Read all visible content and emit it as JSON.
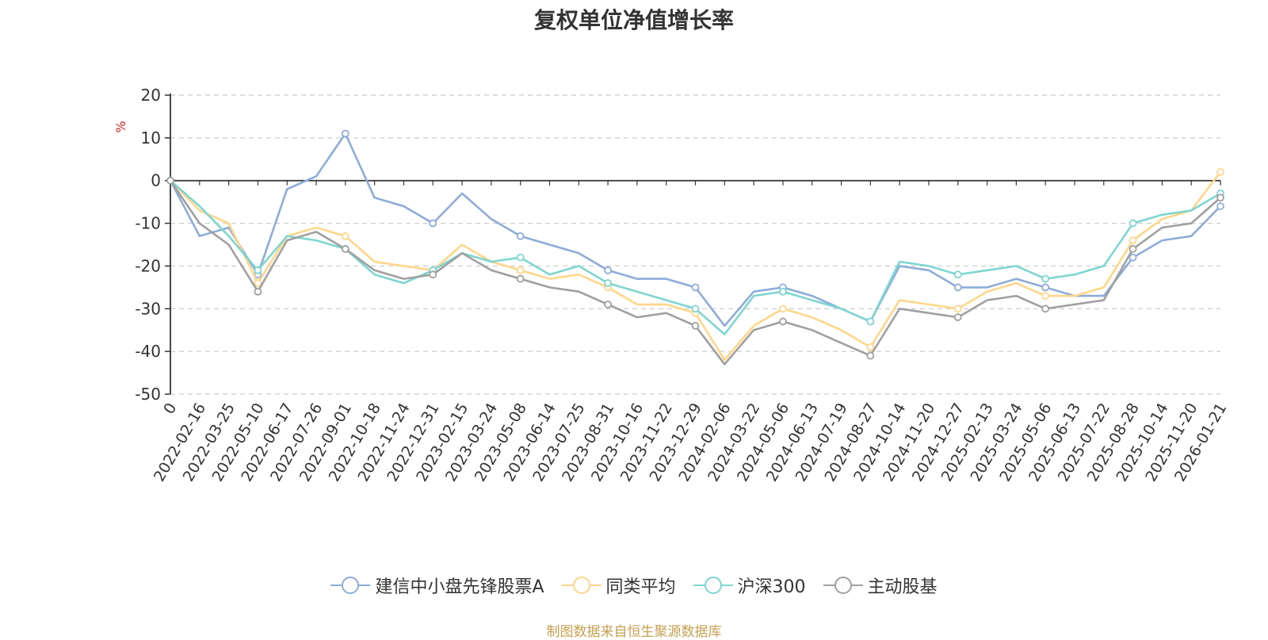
{
  "chart_data": {
    "type": "line",
    "title": "复权单位净值增长率",
    "ylabel": "%",
    "ylim": [
      -50,
      20
    ],
    "yticks": [
      20,
      10,
      0,
      -10,
      -20,
      -30,
      -40,
      -50
    ],
    "grid": true,
    "legend_position": "bottom",
    "categories": [
      "0",
      "2022-02-16",
      "2022-03-25",
      "2022-05-10",
      "2022-06-17",
      "2022-07-26",
      "2022-09-01",
      "2022-10-18",
      "2022-11-24",
      "2022-12-31",
      "2023-02-15",
      "2023-03-24",
      "2023-05-08",
      "2023-06-14",
      "2023-07-25",
      "2023-08-31",
      "2023-10-16",
      "2023-11-22",
      "2023-12-29",
      "2024-02-06",
      "2024-03-22",
      "2024-05-06",
      "2024-06-13",
      "2024-07-19",
      "2024-08-27",
      "2024-10-14",
      "2024-11-20",
      "2024-12-27",
      "2025-02-13",
      "2025-03-24",
      "2025-05-06",
      "2025-06-13",
      "2025-07-22",
      "2025-08-28",
      "2025-10-14",
      "2025-11-20",
      "2026-01-21"
    ],
    "series": [
      {
        "name": "建信中小盘先锋股票A",
        "color": "#8eacd9",
        "values": [
          0,
          -13,
          -11,
          -22,
          -2,
          1,
          11,
          -4,
          -6,
          -10,
          -3,
          -9,
          -13,
          -15,
          -17,
          -21,
          -23,
          -23,
          -25,
          -34,
          -26,
          -25,
          -27,
          -30,
          -33,
          -20,
          -21,
          -25,
          -25,
          -23,
          -25,
          -27,
          -27,
          -18,
          -14,
          -13,
          -6
        ]
      },
      {
        "name": "同类平均",
        "color": "#ffd68a",
        "values": [
          0,
          -7,
          -10,
          -24,
          -13,
          -11,
          -13,
          -19,
          -20,
          -21,
          -15,
          -19,
          -21,
          -23,
          -22,
          -25,
          -29,
          -29,
          -31,
          -42,
          -34,
          -30,
          -32,
          -35,
          -39,
          -28,
          -29,
          -30,
          -26,
          -24,
          -27,
          -27,
          -25,
          -14,
          -9,
          -7,
          2
        ]
      },
      {
        "name": "沪深300",
        "color": "#7fd6d1",
        "values": [
          0,
          -6,
          -13,
          -21,
          -13,
          -14,
          -16,
          -22,
          -24,
          -21,
          -17,
          -19,
          -18,
          -22,
          -20,
          -24,
          -26,
          -28,
          -30,
          -36,
          -27,
          -26,
          -28,
          -30,
          -33,
          -19,
          -20,
          -22,
          -21,
          -20,
          -23,
          -22,
          -20,
          -10,
          -8,
          -7,
          -3
        ]
      },
      {
        "name": "主动股基",
        "color": "#a0a0a0",
        "values": [
          0,
          -10,
          -15,
          -26,
          -14,
          -12,
          -16,
          -21,
          -23,
          -22,
          -17,
          -21,
          -23,
          -25,
          -26,
          -29,
          -32,
          -31,
          -34,
          -43,
          -35,
          -33,
          -35,
          -38,
          -41,
          -30,
          -31,
          -32,
          -28,
          -27,
          -30,
          -29,
          -28,
          -16,
          -11,
          -10,
          -4
        ]
      }
    ]
  },
  "source_note": "制图数据来自恒生聚源数据库"
}
